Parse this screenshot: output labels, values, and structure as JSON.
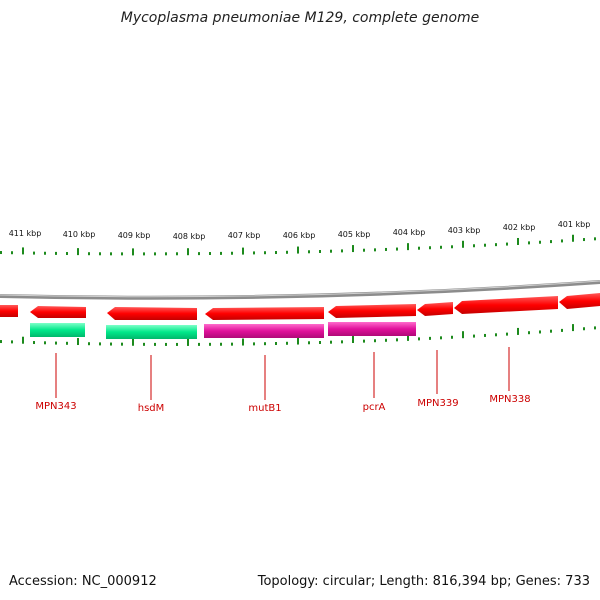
{
  "title": "Mycoplasma pneumoniae M129, complete genome",
  "footer": {
    "accession": "Accession: NC_000912",
    "stats": "Topology: circular; Length: 816,394 bp; Genes: 733"
  },
  "colors": {
    "gene_red": "#ff0000",
    "gene_green": "#00e88a",
    "gene_magenta": "#e0119a",
    "tick_green": "#1c8a1c",
    "backbone": "#8c8c8c",
    "label_red": "#cc0000"
  },
  "scale_labels": [
    "411 kbp",
    "410 kbp",
    "409 kbp",
    "408 kbp",
    "407 kbp",
    "406 kbp",
    "405 kbp",
    "404 kbp",
    "403 kbp",
    "402 kbp",
    "401 kbp"
  ],
  "gene_labels": [
    "MPN343",
    "hsdM",
    "mutB1",
    "pcrA",
    "MPN339",
    "MPN338"
  ]
}
